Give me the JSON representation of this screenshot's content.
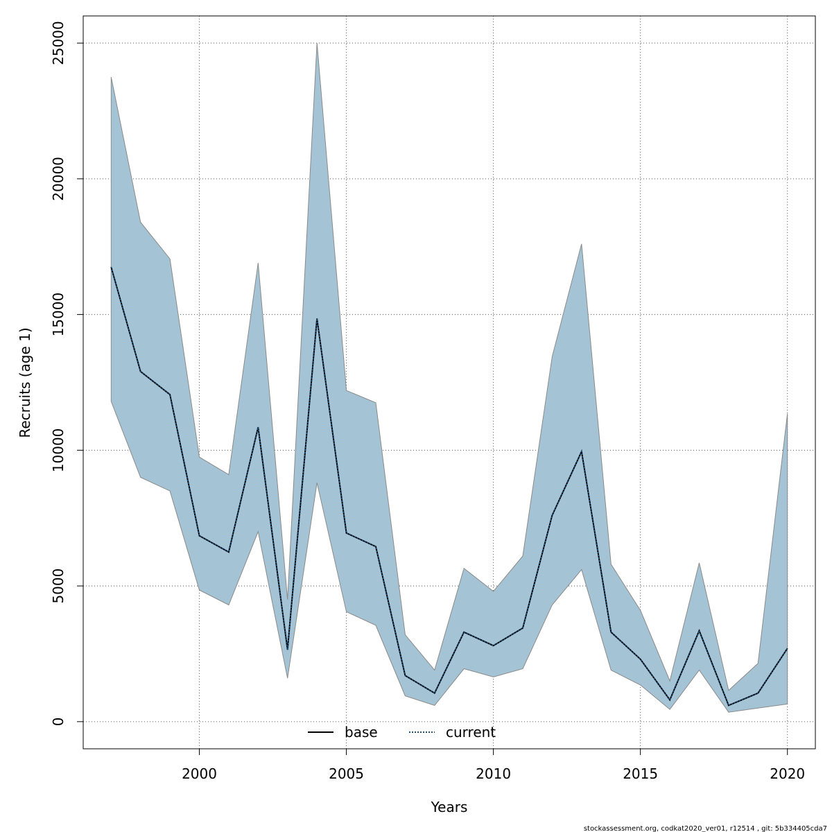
{
  "chart_data": {
    "type": "line",
    "title": "",
    "xlabel": "Years",
    "ylabel": "Recruits (age 1)",
    "xlim": [
      1996.05,
      2020.95
    ],
    "ylim": [
      -1000,
      26000
    ],
    "x_ticks": [
      2000,
      2005,
      2010,
      2015,
      2020
    ],
    "y_ticks": [
      0,
      5000,
      10000,
      15000,
      20000,
      25000
    ],
    "grid": true,
    "legend_position": "bottom-center",
    "x": [
      1997,
      1998,
      1999,
      2000,
      2001,
      2002,
      2003,
      2004,
      2005,
      2006,
      2007,
      2008,
      2009,
      2010,
      2011,
      2012,
      2013,
      2014,
      2015,
      2016,
      2017,
      2018,
      2019,
      2020
    ],
    "series": [
      {
        "name": "base",
        "style": "solid",
        "color": "#000000",
        "values": [
          16750,
          12900,
          12050,
          6850,
          6250,
          10850,
          2650,
          14850,
          6950,
          6450,
          1700,
          1050,
          3300,
          2800,
          3450,
          7600,
          9950,
          3300,
          2300,
          800,
          3350,
          600,
          1050,
          2700
        ]
      },
      {
        "name": "current",
        "style": "dotted",
        "color": "#1f4e79",
        "values": [
          16750,
          12900,
          12050,
          6850,
          6250,
          10850,
          2650,
          14850,
          6950,
          6450,
          1700,
          1050,
          3300,
          2800,
          3450,
          7600,
          9950,
          3300,
          2300,
          800,
          3350,
          600,
          1050,
          2700
        ]
      }
    ],
    "band": {
      "lower": [
        11800,
        9000,
        8500,
        4850,
        4300,
        7000,
        1600,
        8800,
        4050,
        3550,
        950,
        600,
        1950,
        1650,
        1950,
        4300,
        5600,
        1900,
        1350,
        450,
        1900,
        350,
        500,
        650
      ],
      "upper": [
        23750,
        18400,
        17050,
        9750,
        9100,
        16900,
        4500,
        25000,
        12200,
        11750,
        3200,
        1900,
        5650,
        4800,
        6100,
        13450,
        17600,
        5800,
        4100,
        1500,
        5850,
        1150,
        2150,
        11350
      ],
      "fill_color": "#a4c3d4",
      "edge_color": "#8a8a8a"
    }
  },
  "footer": "stockassessment.org, codkat2020_ver01, r12514 , git: 5b334405cda7"
}
